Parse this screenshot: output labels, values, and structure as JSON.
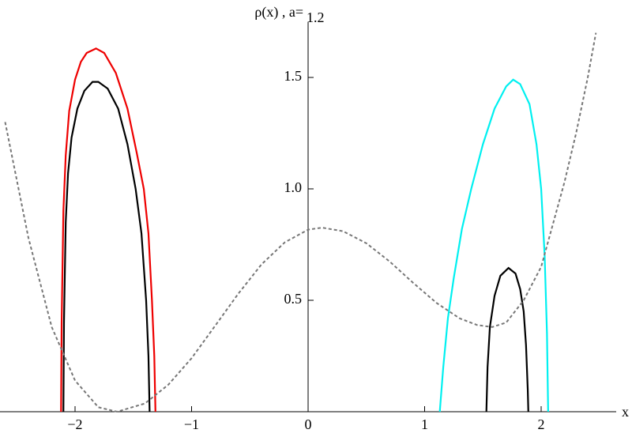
{
  "chart_data": {
    "type": "line",
    "title": "ρ(x) , a=",
    "title_parameter": "1.2",
    "x_label": "x",
    "xlim": [
      -2.644,
      2.644
    ],
    "ylim": [
      0,
      1.75
    ],
    "xticks": [
      {
        "value": -2,
        "label": "−2"
      },
      {
        "value": -1,
        "label": "−1"
      },
      0,
      1,
      2
    ],
    "yticks": [
      0.5,
      {
        "value": 1,
        "label": "1.0"
      },
      1.5
    ],
    "series": [
      {
        "color": "#ee0000",
        "dash": false,
        "x": [
          -2.12,
          -2.115,
          -2.1,
          -2.08,
          -2.05,
          -2.0,
          -1.95,
          -1.9,
          -1.82,
          -1.75,
          -1.65,
          -1.55,
          -1.47,
          -1.41,
          -1.37,
          -1.34,
          -1.32,
          -1.31
        ],
        "values": [
          0,
          0.4,
          0.9,
          1.15,
          1.35,
          1.49,
          1.57,
          1.61,
          1.63,
          1.61,
          1.52,
          1.36,
          1.16,
          1.0,
          0.8,
          0.5,
          0.25,
          0
        ]
      },
      {
        "color": "#000000",
        "dash": false,
        "x": [
          -2.1,
          -2.095,
          -2.08,
          -2.06,
          -2.03,
          -1.98,
          -1.92,
          -1.85,
          -1.8,
          -1.72,
          -1.63,
          -1.55,
          -1.48,
          -1.43,
          -1.39,
          -1.37,
          -1.36
        ],
        "values": [
          0,
          0.4,
          0.85,
          1.07,
          1.23,
          1.36,
          1.44,
          1.48,
          1.48,
          1.45,
          1.36,
          1.2,
          1.0,
          0.8,
          0.5,
          0.25,
          0
        ]
      },
      {
        "color": "#00f0f0",
        "dash": false,
        "x": [
          1.13,
          1.16,
          1.2,
          1.25,
          1.32,
          1.4,
          1.5,
          1.6,
          1.7,
          1.76,
          1.82,
          1.9,
          1.96,
          2.0,
          2.03,
          2.05,
          2.06
        ],
        "values": [
          0,
          0.2,
          0.42,
          0.6,
          0.82,
          1.0,
          1.2,
          1.36,
          1.46,
          1.49,
          1.47,
          1.38,
          1.2,
          1.0,
          0.7,
          0.35,
          0
        ]
      },
      {
        "color": "#000000",
        "dash": false,
        "x": [
          1.53,
          1.54,
          1.56,
          1.6,
          1.65,
          1.72,
          1.78,
          1.82,
          1.85,
          1.87,
          1.885,
          1.89
        ],
        "values": [
          0,
          0.2,
          0.38,
          0.52,
          0.61,
          0.645,
          0.62,
          0.55,
          0.45,
          0.3,
          0.1,
          0
        ]
      },
      {
        "color": "#777777",
        "dash": true,
        "x": [
          -2.6,
          -2.4,
          -2.2,
          -2.0,
          -1.8,
          -1.64,
          -1.4,
          -1.2,
          -1.0,
          -0.8,
          -0.6,
          -0.4,
          -0.2,
          0.0,
          0.12,
          0.3,
          0.5,
          0.7,
          0.9,
          1.1,
          1.3,
          1.45,
          1.58,
          1.7,
          1.85,
          2.0,
          2.1,
          2.2,
          2.3,
          2.4,
          2.47
        ],
        "values": [
          1.3,
          0.78,
          0.38,
          0.14,
          0.02,
          0,
          0.037,
          0.121,
          0.24,
          0.384,
          0.529,
          0.661,
          0.76,
          0.817,
          0.826,
          0.81,
          0.756,
          0.674,
          0.579,
          0.489,
          0.419,
          0.389,
          0.38,
          0.4,
          0.5,
          0.65,
          0.84,
          1.03,
          1.25,
          1.5,
          1.7
        ]
      }
    ]
  }
}
